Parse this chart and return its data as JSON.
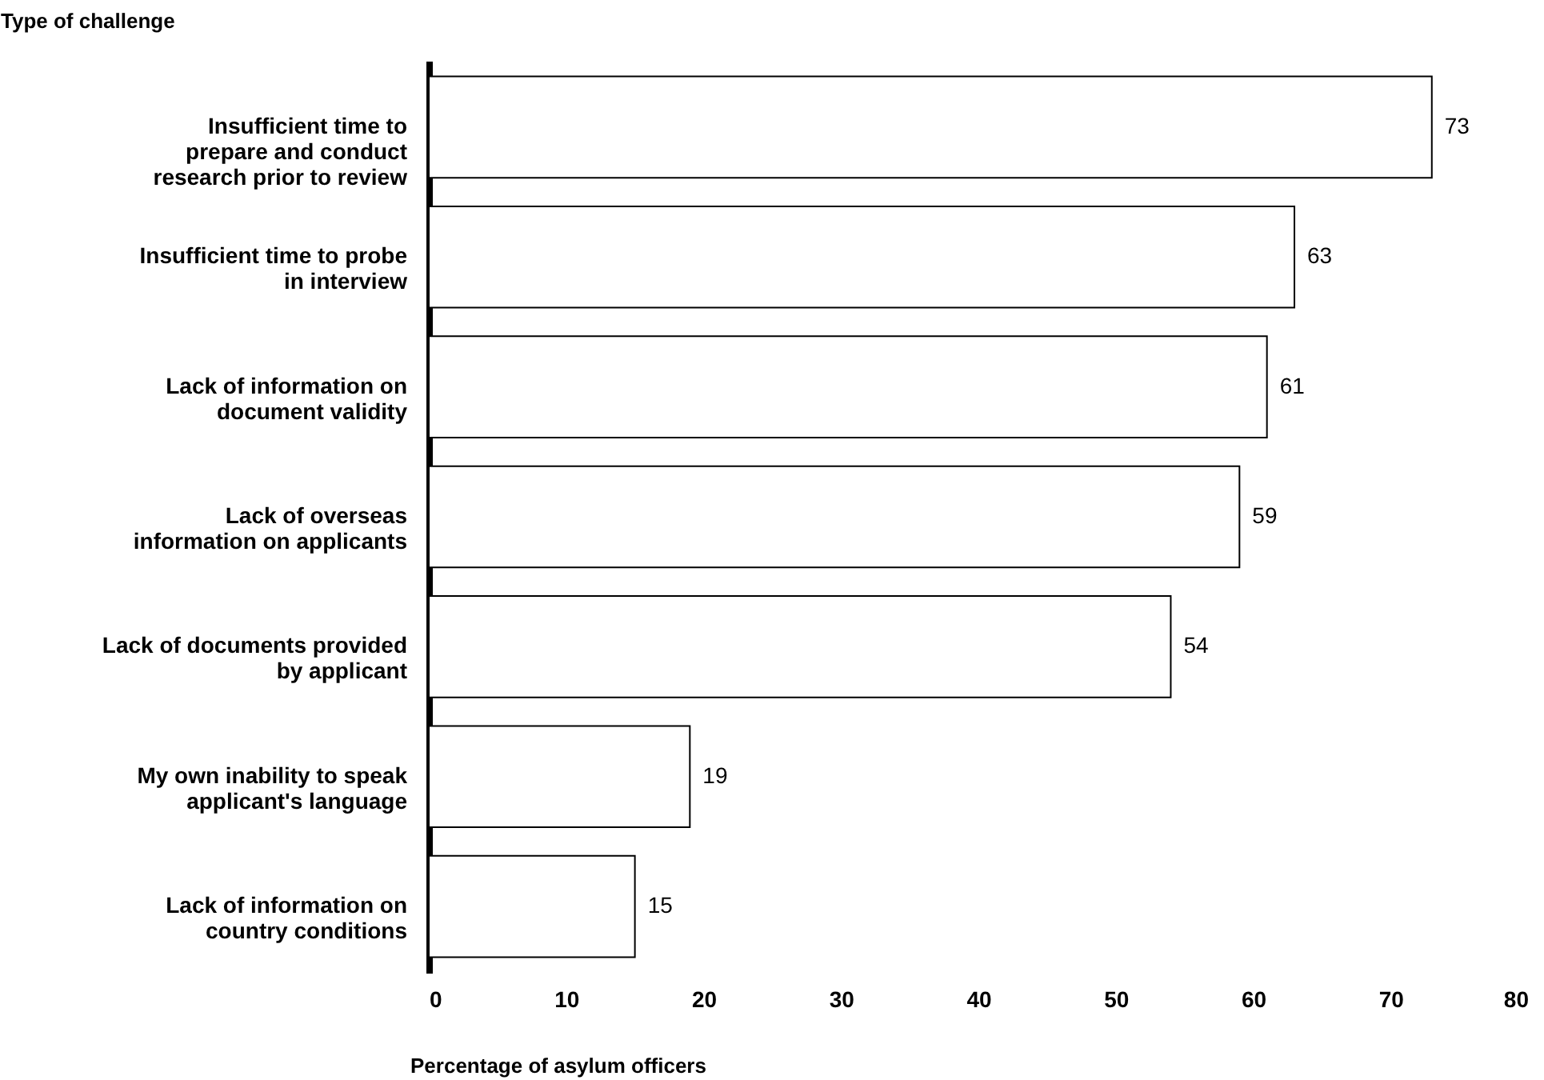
{
  "chart_data": {
    "type": "bar",
    "orientation": "horizontal",
    "ylabel": "Type of challenge",
    "xlabel": "Percentage of asylum officers",
    "categories": [
      "Insufficient time to prepare and conduct research prior to review",
      "Insufficient time to probe in interview",
      "Lack of information on document validity",
      "Lack of overseas information on applicants",
      "Lack of documents provided by applicant",
      "My own inability to speak applicant's language",
      "Lack of information on country conditions"
    ],
    "values": [
      73,
      63,
      61,
      59,
      54,
      19,
      15
    ],
    "color": "#ffffff",
    "data_labels": true,
    "xlim": [
      0,
      80
    ],
    "xticks": [
      0,
      10,
      20,
      30,
      40,
      50,
      60,
      70,
      80
    ],
    "grid": false
  }
}
